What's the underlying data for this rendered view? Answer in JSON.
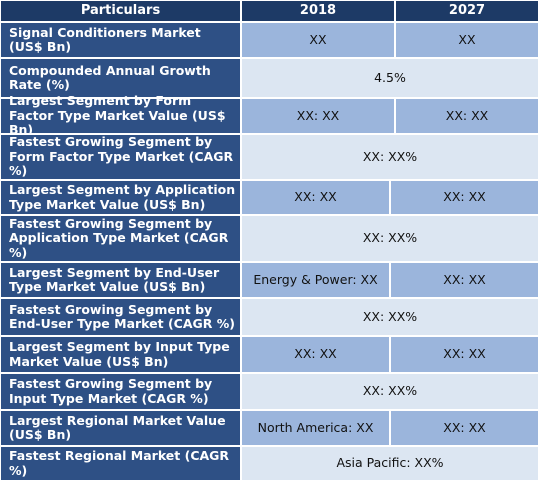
{
  "header": {
    "particulars": "Particulars",
    "year_2018": "2018",
    "year_2027": "2027"
  },
  "rows": [
    {
      "label": "Signal Conditioners Market (US$ Bn)",
      "v2018": "XX",
      "v2027": "XX"
    },
    {
      "label": "Compounded Annual Growth Rate (%)",
      "merged": "4.5%"
    },
    {
      "label": "Largest Segment by Form Factor Type Market Value (US$ Bn)",
      "v2018": "XX: XX",
      "v2027": "XX: XX"
    },
    {
      "label": "Fastest Growing Segment by Form Factor Type Market (CAGR %)",
      "merged": "XX: XX%"
    },
    {
      "label": "Largest Segment by Application Type Market Value (US$ Bn)",
      "v2018": "XX: XX",
      "v2027": "XX: XX"
    },
    {
      "label": "Fastest Growing Segment by Application Type Market (CAGR %)",
      "merged": "XX: XX%"
    },
    {
      "label": "Largest Segment by End-User Type Market Value (US$ Bn)",
      "v2018": "Energy & Power: XX",
      "v2027": "XX: XX"
    },
    {
      "label": "Fastest Growing Segment by End-User Type Market (CAGR %)",
      "merged": "XX: XX%"
    },
    {
      "label": "Largest Segment by Input Type Market Value (US$ Bn)",
      "v2018": "XX: XX",
      "v2027": "XX: XX"
    },
    {
      "label": "Fastest Growing Segment by Input Type Market (CAGR %)",
      "merged": "XX: XX%"
    },
    {
      "label": "Largest Regional Market Value (US$ Bn)",
      "v2018": "North America: XX",
      "v2027": "XX: XX"
    },
    {
      "label": "Fastest Regional Market (CAGR %)",
      "merged": "Asia Pacific: XX%"
    }
  ]
}
